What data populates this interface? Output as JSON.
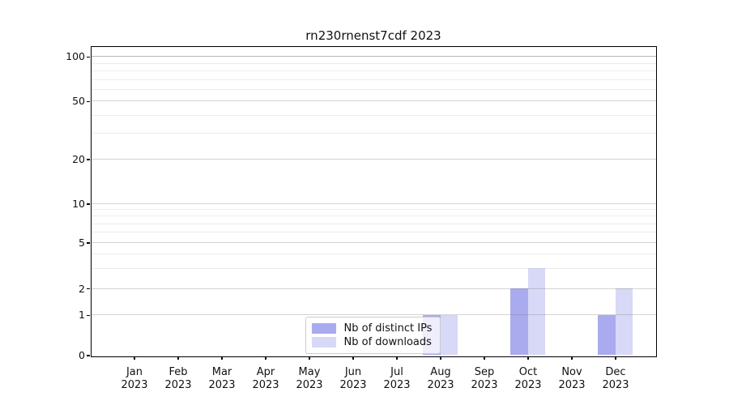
{
  "chart_data": {
    "type": "bar",
    "title": "rn230rnenst7cdf 2023",
    "categories": [
      "Jan",
      "Feb",
      "Mar",
      "Apr",
      "May",
      "Jun",
      "Jul",
      "Aug",
      "Sep",
      "Oct",
      "Nov",
      "Dec"
    ],
    "category_year": "2023",
    "series": [
      {
        "name": "Nb of distinct IPs",
        "color": "#aaaaef",
        "values": [
          0,
          0,
          0,
          0,
          0,
          0,
          0,
          1,
          0,
          2,
          0,
          1
        ]
      },
      {
        "name": "Nb of downloads",
        "color": "#d8d8f7",
        "values": [
          0,
          0,
          0,
          0,
          0,
          0,
          0,
          1,
          0,
          3,
          0,
          2
        ]
      }
    ],
    "xlabel": "",
    "ylabel": "",
    "yaxis": {
      "scale": "symlog",
      "major_ticks": [
        0,
        1,
        2,
        5,
        10,
        20,
        50,
        100
      ],
      "minor_ticks": [
        3,
        4,
        6,
        7,
        8,
        9,
        30,
        40,
        60,
        70,
        80,
        90
      ],
      "ylim": [
        0,
        118
      ]
    },
    "grid": "horizontal major and minor gridlines",
    "legend": {
      "position": "inside lower-center",
      "entries": [
        "Nb of distinct IPs",
        "Nb of downloads"
      ]
    }
  }
}
